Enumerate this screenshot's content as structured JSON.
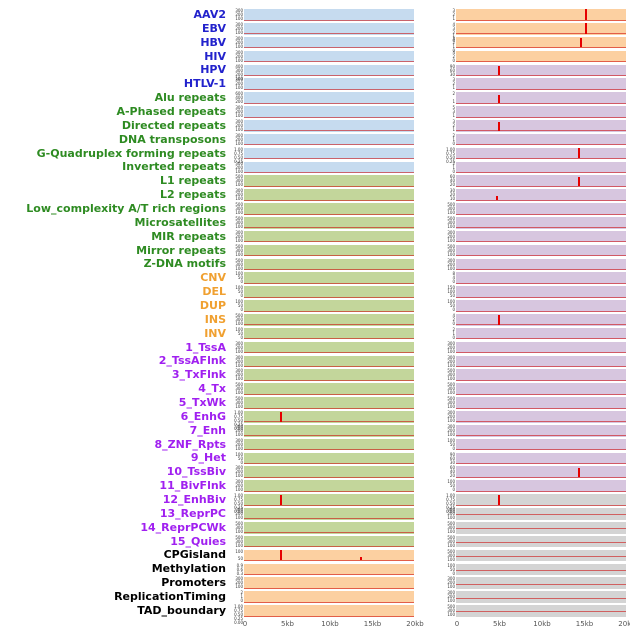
{
  "figure": {
    "background": "#FFFFFF",
    "label_colors": {
      "virus": "#2222CC",
      "repeat": "#2E8B22",
      "sv": "#F0A030",
      "chromatin": "#A020F0",
      "other": "#000000"
    },
    "strip_colors": {
      "blue": "#C6DBEF",
      "green": "#C3D69B",
      "orange": "#FCD0A1",
      "purple": "#D7C6DF",
      "gray": "#D4D4D4"
    },
    "signal_color": "#E60000"
  },
  "chart_data": {
    "type": "line",
    "x_unit": "kb",
    "x_range": [
      0,
      20
    ],
    "x_ticks": [
      "0",
      "5kb",
      "10kb",
      "15kb",
      "20kb"
    ],
    "rows": [
      {
        "label": "AAV2",
        "group": "virus",
        "left": {
          "fill": "blue",
          "yticks": [
            "300",
            "200",
            "100"
          ]
        },
        "right": {
          "fill": "orange",
          "yticks": [
            "3",
            "2",
            "1"
          ],
          "spikes": [
            {
              "x": 15.3,
              "h": 1.0
            }
          ]
        }
      },
      {
        "label": "EBV",
        "group": "virus",
        "left": {
          "fill": "blue",
          "yticks": [
            "300",
            "200",
            "100"
          ]
        },
        "right": {
          "fill": "orange",
          "yticks": [
            "4",
            "3",
            "2",
            "1",
            "0"
          ],
          "spikes": [
            {
              "x": 15.3,
              "h": 0.95
            }
          ]
        }
      },
      {
        "label": "HBV",
        "group": "virus",
        "left": {
          "fill": "blue",
          "yticks": [
            "300",
            "200",
            "100"
          ]
        },
        "right": {
          "fill": "orange",
          "yticks": [
            "3",
            "2",
            "1",
            "0"
          ],
          "spikes": [
            {
              "x": 14.7,
              "h": 0.85
            }
          ]
        }
      },
      {
        "label": "HIV",
        "group": "virus",
        "left": {
          "fill": "blue",
          "yticks": [
            "300",
            "200",
            "100"
          ]
        },
        "right": {
          "fill": "orange",
          "yticks": [
            "4",
            "2",
            "0"
          ]
        }
      },
      {
        "label": "HPV",
        "group": "virus",
        "left": {
          "fill": "blue",
          "yticks": [
            "400",
            "300",
            "200",
            "100"
          ]
        },
        "right": {
          "fill": "purple",
          "yticks": [
            "90",
            "60",
            "30"
          ],
          "spikes": [
            {
              "x": 5.0,
              "h": 0.8
            }
          ]
        }
      },
      {
        "label": "HTLV-1",
        "group": "virus",
        "left": {
          "fill": "blue",
          "yticks": [
            "300",
            "200",
            "100"
          ]
        },
        "right": {
          "fill": "purple",
          "yticks": [
            "3",
            "2",
            "1"
          ]
        }
      },
      {
        "label": "Alu repeats",
        "group": "repeat",
        "left": {
          "fill": "blue",
          "yticks": [
            "600",
            "400",
            "200"
          ]
        },
        "right": {
          "fill": "purple",
          "yticks": [
            "2",
            "1"
          ],
          "spikes": [
            {
              "x": 5.0,
              "h": 0.7
            }
          ]
        }
      },
      {
        "label": "A-Phased repeats",
        "group": "repeat",
        "left": {
          "fill": "blue",
          "yticks": [
            "300",
            "200",
            "100"
          ]
        },
        "right": {
          "fill": "purple",
          "yticks": [
            "5",
            "3",
            "1"
          ]
        }
      },
      {
        "label": "Directed repeats",
        "group": "repeat",
        "left": {
          "fill": "blue",
          "yticks": [
            "300",
            "200",
            "100"
          ]
        },
        "right": {
          "fill": "purple",
          "yticks": [
            "3",
            "2",
            "1"
          ],
          "spikes": [
            {
              "x": 5.0,
              "h": 0.75
            }
          ]
        }
      },
      {
        "label": "DNA transposons",
        "group": "repeat",
        "left": {
          "fill": "blue",
          "yticks": [
            "300",
            "200",
            "100"
          ]
        },
        "right": {
          "fill": "purple",
          "yticks": [
            "2",
            "1",
            "0"
          ]
        }
      },
      {
        "label": "G-Quadruplex forming repeats",
        "group": "repeat",
        "left": {
          "fill": "blue",
          "yticks": [
            "1.00",
            "0.75",
            "0.50",
            "0.25"
          ]
        },
        "right": {
          "fill": "purple",
          "yticks": [
            "1.00",
            "0.75",
            "0.50",
            "0.25"
          ],
          "spikes": [
            {
              "x": 14.5,
              "h": 0.85
            }
          ]
        }
      },
      {
        "label": "Inverted repeats",
        "group": "repeat",
        "left": {
          "fill": "blue",
          "yticks": [
            "300",
            "200",
            "100"
          ]
        },
        "right": {
          "fill": "purple",
          "yticks": [
            "2",
            "1",
            "0"
          ]
        }
      },
      {
        "label": "L1 repeats",
        "group": "repeat",
        "left": {
          "fill": "green",
          "yticks": [
            "500",
            "300",
            "100"
          ]
        },
        "right": {
          "fill": "purple",
          "yticks": [
            "60",
            "40",
            "20"
          ],
          "spikes": [
            {
              "x": 14.5,
              "h": 0.8
            }
          ]
        }
      },
      {
        "label": "L2 repeats",
        "group": "repeat",
        "left": {
          "fill": "green",
          "yticks": [
            "300",
            "200",
            "100"
          ]
        },
        "right": {
          "fill": "purple",
          "yticks": [
            "30",
            "20",
            "10"
          ],
          "spikes": [
            {
              "x": 4.8,
              "h": 0.35
            }
          ]
        }
      },
      {
        "label": "Low_complexity A/T rich regions",
        "group": "repeat",
        "left": {
          "fill": "green",
          "yticks": [
            "500",
            "300",
            "100"
          ]
        },
        "right": {
          "fill": "purple",
          "yticks": [
            "500",
            "300",
            "100"
          ]
        }
      },
      {
        "label": "Microsatellites",
        "group": "repeat",
        "left": {
          "fill": "green",
          "yticks": [
            "500",
            "300",
            "100"
          ]
        },
        "right": {
          "fill": "purple",
          "yticks": [
            "500",
            "300",
            "100"
          ]
        }
      },
      {
        "label": "MIR repeats",
        "group": "repeat",
        "left": {
          "fill": "green",
          "yticks": [
            "300",
            "200",
            "100"
          ]
        },
        "right": {
          "fill": "purple",
          "yticks": [
            "300",
            "200",
            "100"
          ]
        }
      },
      {
        "label": "Mirror repeats",
        "group": "repeat",
        "left": {
          "fill": "green",
          "yticks": [
            "500",
            "300",
            "100"
          ]
        },
        "right": {
          "fill": "purple",
          "yticks": [
            "500",
            "300",
            "100"
          ]
        }
      },
      {
        "label": "Z-DNA motifs",
        "group": "repeat",
        "left": {
          "fill": "green",
          "yticks": [
            "500",
            "300",
            "100"
          ]
        },
        "right": {
          "fill": "purple",
          "yticks": [
            "300",
            "200",
            "100"
          ]
        }
      },
      {
        "label": "CNV",
        "group": "sv",
        "left": {
          "fill": "green",
          "yticks": [
            "100",
            "50",
            "0"
          ]
        },
        "right": {
          "fill": "purple",
          "yticks": [
            "8",
            "4",
            "0"
          ]
        }
      },
      {
        "label": "DEL",
        "group": "sv",
        "left": {
          "fill": "green",
          "yticks": [
            "100",
            "50",
            "0"
          ]
        },
        "right": {
          "fill": "purple",
          "yticks": [
            "150",
            "100",
            "50"
          ]
        }
      },
      {
        "label": "DUP",
        "group": "sv",
        "left": {
          "fill": "green",
          "yticks": [
            "100",
            "50",
            "0"
          ]
        },
        "right": {
          "fill": "purple",
          "yticks": [
            "100",
            "50",
            "0"
          ]
        }
      },
      {
        "label": "INS",
        "group": "sv",
        "left": {
          "fill": "green",
          "yticks": [
            "500",
            "300",
            "100"
          ]
        },
        "right": {
          "fill": "purple",
          "yticks": [
            "4",
            "2",
            "0"
          ],
          "spikes": [
            {
              "x": 5.0,
              "h": 0.85
            }
          ]
        }
      },
      {
        "label": "INV",
        "group": "sv",
        "left": {
          "fill": "green",
          "yticks": [
            "100",
            "50",
            "0"
          ]
        },
        "right": {
          "fill": "purple",
          "yticks": [
            "2",
            "1",
            "0"
          ]
        }
      },
      {
        "label": "1_TssA",
        "group": "chromatin",
        "left": {
          "fill": "green",
          "yticks": [
            "300",
            "200",
            "100"
          ]
        },
        "right": {
          "fill": "purple",
          "yticks": [
            "300",
            "200",
            "100"
          ]
        }
      },
      {
        "label": "2_TssAFlnk",
        "group": "chromatin",
        "left": {
          "fill": "green",
          "yticks": [
            "300",
            "200",
            "100"
          ]
        },
        "right": {
          "fill": "purple",
          "yticks": [
            "300",
            "200",
            "100"
          ]
        }
      },
      {
        "label": "3_TxFlnk",
        "group": "chromatin",
        "left": {
          "fill": "green",
          "yticks": [
            "300",
            "200",
            "100"
          ]
        },
        "right": {
          "fill": "purple",
          "yticks": [
            "500",
            "300",
            "100"
          ]
        }
      },
      {
        "label": "4_Tx",
        "group": "chromatin",
        "left": {
          "fill": "green",
          "yticks": [
            "500",
            "300",
            "100"
          ]
        },
        "right": {
          "fill": "purple",
          "yticks": [
            "500",
            "300",
            "100"
          ]
        }
      },
      {
        "label": "5_TxWk",
        "group": "chromatin",
        "left": {
          "fill": "green",
          "yticks": [
            "500",
            "300",
            "100"
          ]
        },
        "right": {
          "fill": "purple",
          "yticks": [
            "500",
            "300",
            "100"
          ]
        }
      },
      {
        "label": "6_EnhG",
        "group": "chromatin",
        "left": {
          "fill": "green",
          "yticks": [
            "1.00",
            "0.75",
            "0.50",
            "0.25",
            "0.00"
          ],
          "spikes": [
            {
              "x": 4.3,
              "h": 0.85
            }
          ]
        },
        "right": {
          "fill": "purple",
          "yticks": [
            "300",
            "200",
            "100"
          ]
        }
      },
      {
        "label": "7_Enh",
        "group": "chromatin",
        "left": {
          "fill": "green",
          "yticks": [
            "300",
            "200",
            "100"
          ]
        },
        "right": {
          "fill": "purple",
          "yticks": [
            "300",
            "200",
            "100"
          ]
        }
      },
      {
        "label": "8_ZNF_Rpts",
        "group": "chromatin",
        "left": {
          "fill": "green",
          "yticks": [
            "300",
            "200",
            "100"
          ]
        },
        "right": {
          "fill": "purple",
          "yticks": [
            "100",
            "50",
            "0"
          ]
        }
      },
      {
        "label": "9_Het",
        "group": "chromatin",
        "left": {
          "fill": "green",
          "yticks": [
            "100",
            "50",
            "0"
          ]
        },
        "right": {
          "fill": "purple",
          "yticks": [
            "90",
            "60",
            "30"
          ]
        }
      },
      {
        "label": "10_TssBiv",
        "group": "chromatin",
        "left": {
          "fill": "green",
          "yticks": [
            "300",
            "200",
            "100"
          ]
        },
        "right": {
          "fill": "purple",
          "yticks": [
            "60",
            "40",
            "20"
          ],
          "spikes": [
            {
              "x": 14.5,
              "h": 0.8
            }
          ]
        }
      },
      {
        "label": "11_BivFlnk",
        "group": "chromatin",
        "left": {
          "fill": "green",
          "yticks": [
            "300",
            "200",
            "100"
          ]
        },
        "right": {
          "fill": "purple",
          "yticks": [
            "100",
            "50",
            "0"
          ]
        }
      },
      {
        "label": "12_EnhBiv",
        "group": "chromatin",
        "left": {
          "fill": "green",
          "yticks": [
            "1.00",
            "0.75",
            "0.50",
            "0.25",
            "0.00"
          ],
          "spikes": [
            {
              "x": 4.3,
              "h": 0.85
            }
          ]
        },
        "right": {
          "fill": "gray",
          "yticks": [
            "1.00",
            "0.75",
            "0.50",
            "0.25",
            "0.00"
          ],
          "spikes": [
            {
              "x": 5.0,
              "h": 0.85
            }
          ]
        }
      },
      {
        "label": "13_ReprPC",
        "group": "chromatin",
        "left": {
          "fill": "green",
          "yticks": [
            "300",
            "200",
            "100"
          ]
        },
        "right": {
          "fill": "gray",
          "yticks": [
            "300",
            "200",
            "100"
          ],
          "baseline": 0.55
        }
      },
      {
        "label": "14_ReprPCWk",
        "group": "chromatin",
        "left": {
          "fill": "green",
          "yticks": [
            "500",
            "300",
            "100"
          ]
        },
        "right": {
          "fill": "gray",
          "yticks": [
            "500",
            "300",
            "100"
          ],
          "baseline": 0.55
        }
      },
      {
        "label": "15_Quies",
        "group": "chromatin",
        "left": {
          "fill": "green",
          "yticks": [
            "500",
            "300",
            "100"
          ]
        },
        "right": {
          "fill": "gray",
          "yticks": [
            "500",
            "300",
            "100"
          ],
          "baseline": 0.55
        }
      },
      {
        "label": "CPGisland",
        "group": "other",
        "left": {
          "fill": "orange",
          "yticks": [
            "100",
            "50"
          ],
          "spikes": [
            {
              "x": 4.3,
              "h": 0.95
            },
            {
              "x": 13.8,
              "h": 0.3
            }
          ]
        },
        "right": {
          "fill": "gray",
          "yticks": [
            "500",
            "300",
            "100"
          ],
          "baseline": 0.55
        }
      },
      {
        "label": "Methylation",
        "group": "other",
        "left": {
          "fill": "orange",
          "yticks": [
            "0.9",
            "0.6",
            "0.3"
          ]
        },
        "right": {
          "fill": "gray",
          "yticks": [
            "100",
            "50",
            "0"
          ],
          "baseline": 0.55
        }
      },
      {
        "label": "Promoters",
        "group": "other",
        "left": {
          "fill": "orange",
          "yticks": [
            "300",
            "200",
            "100"
          ]
        },
        "right": {
          "fill": "gray",
          "yticks": [
            "300",
            "200",
            "100"
          ],
          "baseline": 0.55
        }
      },
      {
        "label": "ReplicationTiming",
        "group": "other",
        "left": {
          "fill": "orange",
          "yticks": [
            "2",
            "1",
            "0"
          ]
        },
        "right": {
          "fill": "gray",
          "yticks": [
            "300",
            "200",
            "100"
          ],
          "baseline": 0.55
        }
      },
      {
        "label": "TAD_boundary",
        "group": "other",
        "left": {
          "fill": "orange",
          "yticks": [
            "1.00",
            "0.75",
            "0.50",
            "0.25",
            "0.00"
          ]
        },
        "right": {
          "fill": "gray",
          "yticks": [
            "500",
            "300",
            "100"
          ],
          "baseline": 0.55
        }
      }
    ]
  }
}
